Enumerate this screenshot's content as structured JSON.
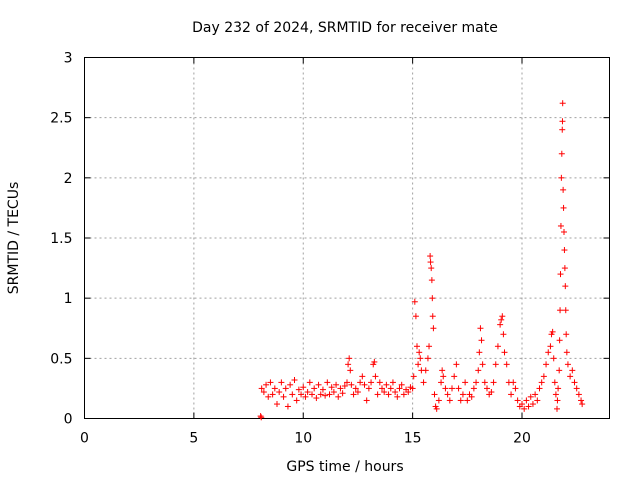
{
  "chart_data": {
    "type": "scatter",
    "title": "Day 232 of 2024, SRMTID for receiver mate",
    "xlabel": "GPS time / hours",
    "ylabel": "SRMTID / TECUs",
    "xlim": [
      0,
      24
    ],
    "ylim": [
      0,
      3
    ],
    "xticks": [
      0,
      5,
      10,
      15,
      20
    ],
    "xtick_labels": [
      "0",
      "5",
      "10",
      "15",
      "20"
    ],
    "yticks": [
      0,
      0.5,
      1,
      1.5,
      2,
      2.5,
      3
    ],
    "ytick_labels": [
      "0",
      "0.5",
      "1",
      "1.5",
      "2",
      "2.5",
      "3"
    ],
    "grid": true,
    "marker": "+",
    "color": "#ff0000",
    "series": [
      {
        "name": "SRMTID",
        "points": [
          [
            8.05,
            0.02
          ],
          [
            8.08,
            0.01
          ],
          [
            8.1,
            0.25
          ],
          [
            8.2,
            0.22
          ],
          [
            8.3,
            0.28
          ],
          [
            8.4,
            0.18
          ],
          [
            8.5,
            0.3
          ],
          [
            8.6,
            0.2
          ],
          [
            8.7,
            0.25
          ],
          [
            8.8,
            0.12
          ],
          [
            8.9,
            0.22
          ],
          [
            9.0,
            0.3
          ],
          [
            9.1,
            0.18
          ],
          [
            9.2,
            0.25
          ],
          [
            9.3,
            0.1
          ],
          [
            9.4,
            0.28
          ],
          [
            9.5,
            0.2
          ],
          [
            9.6,
            0.32
          ],
          [
            9.7,
            0.15
          ],
          [
            9.8,
            0.24
          ],
          [
            9.9,
            0.2
          ],
          [
            10.0,
            0.26
          ],
          [
            10.1,
            0.18
          ],
          [
            10.2,
            0.22
          ],
          [
            10.3,
            0.3
          ],
          [
            10.4,
            0.2
          ],
          [
            10.5,
            0.25
          ],
          [
            10.6,
            0.17
          ],
          [
            10.7,
            0.28
          ],
          [
            10.8,
            0.2
          ],
          [
            10.9,
            0.24
          ],
          [
            11.0,
            0.19
          ],
          [
            11.1,
            0.3
          ],
          [
            11.2,
            0.2
          ],
          [
            11.3,
            0.26
          ],
          [
            11.4,
            0.22
          ],
          [
            11.5,
            0.28
          ],
          [
            11.6,
            0.18
          ],
          [
            11.7,
            0.25
          ],
          [
            11.8,
            0.21
          ],
          [
            11.9,
            0.27
          ],
          [
            12.0,
            0.3
          ],
          [
            12.05,
            0.45
          ],
          [
            12.1,
            0.5
          ],
          [
            12.15,
            0.4
          ],
          [
            12.2,
            0.28
          ],
          [
            12.3,
            0.2
          ],
          [
            12.4,
            0.25
          ],
          [
            12.5,
            0.22
          ],
          [
            12.6,
            0.3
          ],
          [
            12.7,
            0.35
          ],
          [
            12.8,
            0.28
          ],
          [
            12.9,
            0.15
          ],
          [
            13.0,
            0.25
          ],
          [
            13.1,
            0.3
          ],
          [
            13.2,
            0.45
          ],
          [
            13.25,
            0.47
          ],
          [
            13.3,
            0.35
          ],
          [
            13.4,
            0.2
          ],
          [
            13.5,
            0.3
          ],
          [
            13.6,
            0.25
          ],
          [
            13.7,
            0.22
          ],
          [
            13.8,
            0.28
          ],
          [
            13.9,
            0.2
          ],
          [
            14.0,
            0.25
          ],
          [
            14.1,
            0.3
          ],
          [
            14.2,
            0.22
          ],
          [
            14.3,
            0.18
          ],
          [
            14.4,
            0.25
          ],
          [
            14.5,
            0.28
          ],
          [
            14.6,
            0.2
          ],
          [
            14.7,
            0.24
          ],
          [
            14.8,
            0.22
          ],
          [
            14.9,
            0.26
          ],
          [
            15.0,
            0.25
          ],
          [
            15.05,
            0.35
          ],
          [
            15.1,
            0.97
          ],
          [
            15.15,
            0.85
          ],
          [
            15.2,
            0.6
          ],
          [
            15.25,
            0.45
          ],
          [
            15.3,
            0.55
          ],
          [
            15.35,
            0.5
          ],
          [
            15.4,
            0.4
          ],
          [
            15.5,
            0.3
          ],
          [
            15.6,
            0.4
          ],
          [
            15.7,
            0.5
          ],
          [
            15.75,
            0.6
          ],
          [
            15.8,
            1.35
          ],
          [
            15.82,
            1.3
          ],
          [
            15.85,
            1.25
          ],
          [
            15.88,
            1.15
          ],
          [
            15.9,
            1.0
          ],
          [
            15.92,
            0.85
          ],
          [
            15.95,
            0.75
          ],
          [
            16.0,
            0.2
          ],
          [
            16.05,
            0.1
          ],
          [
            16.1,
            0.08
          ],
          [
            16.2,
            0.15
          ],
          [
            16.3,
            0.3
          ],
          [
            16.35,
            0.4
          ],
          [
            16.4,
            0.35
          ],
          [
            16.5,
            0.25
          ],
          [
            16.6,
            0.2
          ],
          [
            16.7,
            0.15
          ],
          [
            16.8,
            0.25
          ],
          [
            16.9,
            0.35
          ],
          [
            17.0,
            0.45
          ],
          [
            17.1,
            0.25
          ],
          [
            17.2,
            0.15
          ],
          [
            17.3,
            0.2
          ],
          [
            17.4,
            0.3
          ],
          [
            17.5,
            0.15
          ],
          [
            17.6,
            0.2
          ],
          [
            17.7,
            0.18
          ],
          [
            17.8,
            0.25
          ],
          [
            17.9,
            0.3
          ],
          [
            18.0,
            0.4
          ],
          [
            18.05,
            0.55
          ],
          [
            18.1,
            0.75
          ],
          [
            18.15,
            0.65
          ],
          [
            18.2,
            0.45
          ],
          [
            18.3,
            0.3
          ],
          [
            18.4,
            0.25
          ],
          [
            18.5,
            0.2
          ],
          [
            18.6,
            0.22
          ],
          [
            18.7,
            0.3
          ],
          [
            18.8,
            0.45
          ],
          [
            18.9,
            0.6
          ],
          [
            19.0,
            0.78
          ],
          [
            19.05,
            0.82
          ],
          [
            19.1,
            0.85
          ],
          [
            19.15,
            0.7
          ],
          [
            19.2,
            0.55
          ],
          [
            19.3,
            0.45
          ],
          [
            19.4,
            0.3
          ],
          [
            19.5,
            0.2
          ],
          [
            19.6,
            0.3
          ],
          [
            19.7,
            0.25
          ],
          [
            19.8,
            0.15
          ],
          [
            19.9,
            0.1
          ],
          [
            20.0,
            0.12
          ],
          [
            20.1,
            0.08
          ],
          [
            20.2,
            0.15
          ],
          [
            20.3,
            0.1
          ],
          [
            20.4,
            0.18
          ],
          [
            20.5,
            0.12
          ],
          [
            20.6,
            0.2
          ],
          [
            20.7,
            0.15
          ],
          [
            20.8,
            0.25
          ],
          [
            20.9,
            0.3
          ],
          [
            21.0,
            0.35
          ],
          [
            21.1,
            0.45
          ],
          [
            21.2,
            0.55
          ],
          [
            21.3,
            0.6
          ],
          [
            21.35,
            0.7
          ],
          [
            21.4,
            0.72
          ],
          [
            21.45,
            0.5
          ],
          [
            21.5,
            0.3
          ],
          [
            21.55,
            0.2
          ],
          [
            21.6,
            0.08
          ],
          [
            21.62,
            0.15
          ],
          [
            21.65,
            0.25
          ],
          [
            21.7,
            0.4
          ],
          [
            21.72,
            0.65
          ],
          [
            21.74,
            0.9
          ],
          [
            21.76,
            1.2
          ],
          [
            21.78,
            1.6
          ],
          [
            21.8,
            2.0
          ],
          [
            21.82,
            2.2
          ],
          [
            21.84,
            2.4
          ],
          [
            21.85,
            2.47
          ],
          [
            21.86,
            2.62
          ],
          [
            21.88,
            1.9
          ],
          [
            21.9,
            1.75
          ],
          [
            21.92,
            1.55
          ],
          [
            21.94,
            1.4
          ],
          [
            21.96,
            1.25
          ],
          [
            21.98,
            1.1
          ],
          [
            22.0,
            0.9
          ],
          [
            22.02,
            0.7
          ],
          [
            22.05,
            0.55
          ],
          [
            22.1,
            0.45
          ],
          [
            22.2,
            0.35
          ],
          [
            22.3,
            0.4
          ],
          [
            22.4,
            0.3
          ],
          [
            22.5,
            0.25
          ],
          [
            22.6,
            0.2
          ],
          [
            22.7,
            0.15
          ],
          [
            22.75,
            0.12
          ]
        ]
      }
    ]
  }
}
